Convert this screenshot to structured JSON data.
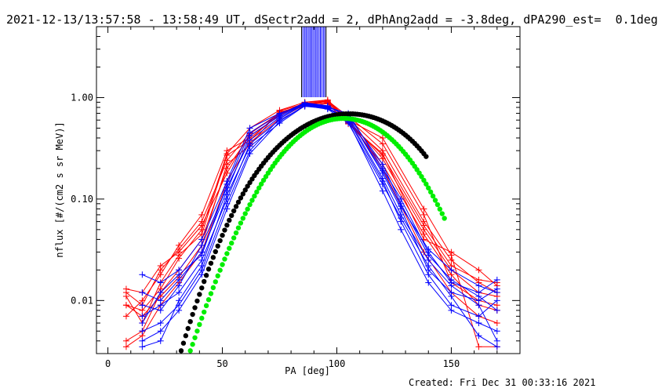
{
  "title": "2021-12-13/13:57:58 - 13:58:49 UT, dSectr2add = 2, dPhAng2add = -3.8deg, dPA290_est=  0.1deg",
  "footer": "Created: Fri Dec 31 00:33:16 2021",
  "chart_data": {
    "type": "line",
    "xlabel": "PA [deg]",
    "ylabel": "nflux [#/(cm2 s sr MeV)]",
    "xlim": [
      -5,
      180
    ],
    "ylim": [
      0.003,
      5
    ],
    "yscale": "log",
    "x_ticks": [
      {
        "value": 0,
        "label": "0"
      },
      {
        "value": 50,
        "label": "50"
      },
      {
        "value": 100,
        "label": "100"
      },
      {
        "value": 150,
        "label": "150"
      }
    ],
    "y_ticks": [
      {
        "value": 0.01,
        "label": "0.01"
      },
      {
        "value": 0.1,
        "label": "0.10"
      },
      {
        "value": 1,
        "label": "1.00"
      }
    ],
    "colors": {
      "red": "#ff0000",
      "blue": "#0000ff",
      "green": "#00ee00",
      "black": "#000000"
    },
    "vertical_lines": {
      "color_outer": "#000000",
      "color_inner": "#0000ff",
      "x_values": [
        84.6,
        85.2,
        85.9,
        86.5,
        87.1,
        87.8,
        88.4,
        89.0,
        89.6,
        90.3,
        90.9,
        91.5,
        92.2,
        92.8,
        93.4,
        94.1,
        94.7,
        95.3
      ]
    },
    "series": [
      {
        "color": "#ff0000",
        "x": [
          8,
          15,
          23,
          31,
          41,
          52,
          62,
          75,
          86,
          96,
          105,
          120,
          138,
          150,
          162,
          170
        ],
        "y": [
          0.009,
          0.008,
          0.013,
          0.026,
          0.05,
          0.28,
          0.5,
          0.75,
          0.9,
          0.95,
          0.6,
          0.25,
          0.05,
          0.02,
          0.012,
          0.011
        ]
      },
      {
        "color": "#ff0000",
        "x": [
          8,
          15,
          23,
          31,
          41,
          52,
          62,
          75,
          86,
          96,
          105,
          120,
          138,
          150,
          162,
          170
        ],
        "y": [
          0.012,
          0.009,
          0.02,
          0.032,
          0.06,
          0.24,
          0.45,
          0.7,
          0.88,
          0.92,
          0.62,
          0.3,
          0.06,
          0.025,
          0.015,
          0.012
        ]
      },
      {
        "color": "#ff0000",
        "x": [
          8,
          15,
          23,
          31,
          41,
          52,
          62,
          75,
          86,
          96,
          105,
          120,
          138,
          150,
          162,
          170
        ],
        "y": [
          0.007,
          0.01,
          0.018,
          0.035,
          0.07,
          0.3,
          0.4,
          0.68,
          0.86,
          0.9,
          0.58,
          0.22,
          0.045,
          0.018,
          0.009,
          0.008
        ]
      },
      {
        "color": "#ff0000",
        "x": [
          8,
          15,
          23,
          31,
          41,
          52,
          62,
          75,
          86,
          96,
          105,
          120,
          138,
          150,
          162,
          170
        ],
        "y": [
          0.011,
          0.006,
          0.015,
          0.028,
          0.045,
          0.27,
          0.38,
          0.72,
          0.84,
          0.87,
          0.55,
          0.28,
          0.04,
          0.03,
          0.02,
          0.014
        ]
      },
      {
        "color": "#ff0000",
        "x": [
          8,
          15,
          23,
          31,
          41,
          52,
          62,
          75,
          86,
          96,
          105,
          120,
          138,
          150,
          162,
          170
        ],
        "y": [
          0.004,
          0.005,
          0.012,
          0.02,
          0.04,
          0.2,
          0.42,
          0.66,
          0.9,
          0.93,
          0.65,
          0.35,
          0.07,
          0.015,
          0.01,
          0.009
        ]
      },
      {
        "color": "#ff0000",
        "x": [
          8,
          15,
          23,
          31,
          41,
          52,
          62,
          75,
          86,
          96,
          105,
          120,
          138,
          150,
          162,
          170
        ],
        "y": [
          0.009,
          0.007,
          0.011,
          0.017,
          0.035,
          0.22,
          0.34,
          0.74,
          0.87,
          0.9,
          0.6,
          0.4,
          0.08,
          0.028,
          0.0035,
          0.0035
        ]
      },
      {
        "color": "#ff0000",
        "x": [
          8,
          15,
          23,
          31,
          41,
          52,
          62,
          75,
          86,
          96,
          105,
          120,
          138,
          150,
          162,
          170
        ],
        "y": [
          0.013,
          0.012,
          0.022,
          0.03,
          0.055,
          0.18,
          0.44,
          0.7,
          0.82,
          0.88,
          0.63,
          0.2,
          0.03,
          0.012,
          0.007,
          0.006
        ]
      },
      {
        "color": "#ff0000",
        "x": [
          8,
          15,
          23,
          31,
          41,
          52,
          62,
          75,
          86,
          96,
          105,
          120,
          138,
          150,
          162,
          170
        ],
        "y": [
          0.0035,
          0.0045,
          0.009,
          0.015,
          0.03,
          0.15,
          0.36,
          0.62,
          0.85,
          0.9,
          0.57,
          0.27,
          0.055,
          0.022,
          0.016,
          0.015
        ]
      },
      {
        "color": "#0000ff",
        "x": [
          15,
          23,
          31,
          41,
          52,
          62,
          75,
          86,
          96,
          105,
          120,
          128,
          140,
          150,
          162,
          170
        ],
        "y": [
          0.018,
          0.015,
          0.02,
          0.04,
          0.15,
          0.5,
          0.7,
          0.85,
          0.8,
          0.7,
          0.2,
          0.1,
          0.03,
          0.015,
          0.012,
          0.016
        ]
      },
      {
        "color": "#0000ff",
        "x": [
          15,
          23,
          31,
          41,
          52,
          62,
          75,
          86,
          96,
          105,
          120,
          128,
          140,
          150,
          162,
          170
        ],
        "y": [
          0.012,
          0.01,
          0.016,
          0.03,
          0.12,
          0.42,
          0.66,
          0.88,
          0.82,
          0.65,
          0.18,
          0.08,
          0.02,
          0.012,
          0.01,
          0.013
        ]
      },
      {
        "color": "#0000ff",
        "x": [
          15,
          23,
          31,
          41,
          52,
          62,
          75,
          86,
          96,
          105,
          120,
          128,
          140,
          150,
          162,
          170
        ],
        "y": [
          0.007,
          0.009,
          0.012,
          0.025,
          0.1,
          0.35,
          0.6,
          0.82,
          0.78,
          0.6,
          0.15,
          0.06,
          0.018,
          0.009,
          0.007,
          0.01
        ]
      },
      {
        "color": "#0000ff",
        "x": [
          15,
          23,
          31,
          41,
          52,
          62,
          75,
          86,
          96,
          105,
          120,
          128,
          140,
          150,
          162,
          170
        ],
        "y": [
          0.005,
          0.006,
          0.009,
          0.02,
          0.09,
          0.3,
          0.62,
          0.86,
          0.8,
          0.58,
          0.12,
          0.05,
          0.015,
          0.008,
          0.006,
          0.005
        ]
      },
      {
        "color": "#0000ff",
        "x": [
          15,
          23,
          31,
          41,
          52,
          62,
          75,
          86,
          96,
          105,
          120,
          128,
          140,
          150,
          162,
          170
        ],
        "y": [
          0.004,
          0.005,
          0.008,
          0.018,
          0.08,
          0.28,
          0.58,
          0.84,
          0.79,
          0.62,
          0.16,
          0.07,
          0.025,
          0.014,
          0.009,
          0.004
        ]
      },
      {
        "color": "#0000ff",
        "x": [
          15,
          23,
          31,
          41,
          52,
          62,
          75,
          86,
          96,
          105,
          120,
          128,
          140,
          150,
          162,
          170
        ],
        "y": [
          0.009,
          0.008,
          0.014,
          0.035,
          0.13,
          0.38,
          0.64,
          0.87,
          0.81,
          0.66,
          0.22,
          0.09,
          0.028,
          0.016,
          0.011,
          0.008
        ]
      },
      {
        "color": "#0000ff",
        "x": [
          15,
          23,
          31,
          41,
          52,
          62,
          75,
          86,
          96,
          105,
          120,
          128,
          140,
          150,
          162,
          170
        ],
        "y": [
          0.0035,
          0.004,
          0.01,
          0.022,
          0.11,
          0.33,
          0.56,
          0.83,
          0.77,
          0.56,
          0.14,
          0.065,
          0.022,
          0.011,
          0.0045,
          0.0035
        ]
      },
      {
        "color": "#0000ff",
        "x": [
          15,
          23,
          31,
          41,
          52,
          62,
          75,
          86,
          96,
          105,
          120,
          128,
          140,
          150,
          162,
          170
        ],
        "y": [
          0.006,
          0.012,
          0.018,
          0.028,
          0.14,
          0.45,
          0.68,
          0.89,
          0.83,
          0.64,
          0.19,
          0.085,
          0.032,
          0.02,
          0.014,
          0.012
        ]
      },
      {
        "color": "#000000",
        "style": "dots",
        "x": [
          32,
          33,
          34,
          35,
          36,
          37,
          38,
          39,
          40,
          41,
          42,
          43,
          44,
          45,
          46,
          47,
          48,
          49,
          50,
          51,
          52,
          53,
          54,
          55,
          56,
          57,
          58,
          59,
          60,
          61,
          62,
          63,
          64,
          65,
          66,
          67,
          68,
          69,
          70,
          71,
          72,
          73,
          74,
          75,
          76,
          77,
          78,
          79,
          80,
          81,
          82,
          83,
          84,
          85,
          86,
          87,
          88,
          89,
          90,
          91,
          92,
          93,
          94,
          95,
          96,
          97,
          98,
          99,
          100,
          101,
          102,
          103,
          104,
          105,
          106,
          107,
          108,
          109,
          110,
          111,
          112,
          113,
          114,
          115,
          116,
          117,
          118,
          119,
          120,
          121,
          122,
          123,
          124,
          125,
          126,
          127,
          128,
          129,
          130,
          131,
          132,
          133,
          134,
          135,
          136,
          137,
          138,
          139
        ],
        "y": [
          0.0032,
          0.0038,
          0.0045,
          0.0053,
          0.0062,
          0.0073,
          0.0085,
          0.0099,
          0.0115,
          0.0133,
          0.0154,
          0.0177,
          0.0204,
          0.0233,
          0.0266,
          0.0303,
          0.0344,
          0.0389,
          0.0439,
          0.0494,
          0.0553,
          0.0618,
          0.0688,
          0.0764,
          0.0845,
          0.0932,
          0.1025,
          0.1123,
          0.1228,
          0.1338,
          0.1454,
          0.1576,
          0.1703,
          0.1835,
          0.1972,
          0.2114,
          0.2261,
          0.2412,
          0.2567,
          0.2726,
          0.2888,
          0.3053,
          0.322,
          0.3389,
          0.356,
          0.3732,
          0.3904,
          0.4076,
          0.4248,
          0.4418,
          0.4587,
          0.4754,
          0.4918,
          0.5079,
          0.5236,
          0.5389,
          0.5537,
          0.568,
          0.5817,
          0.5947,
          0.6071,
          0.6188,
          0.6297,
          0.6398,
          0.6491,
          0.6576,
          0.6652,
          0.6719,
          0.6777,
          0.6825,
          0.6864,
          0.6893,
          0.6912,
          0.6921,
          0.692,
          0.6909,
          0.6887,
          0.6856,
          0.6815,
          0.6764,
          0.6703,
          0.6633,
          0.6553,
          0.6464,
          0.6366,
          0.626,
          0.6145,
          0.6022,
          0.5892,
          0.5754,
          0.561,
          0.5459,
          0.5302,
          0.514,
          0.4973,
          0.4802,
          0.4627,
          0.445,
          0.4269,
          0.4087,
          0.3904,
          0.3719,
          0.3534,
          0.3349,
          0.3165,
          0.2983,
          0.2802,
          0.2624
        ]
      },
      {
        "color": "#00ee00",
        "style": "dots",
        "x": [
          36,
          37,
          38,
          39,
          40,
          41,
          42,
          43,
          44,
          45,
          46,
          47,
          48,
          49,
          50,
          51,
          52,
          53,
          54,
          55,
          56,
          57,
          58,
          59,
          60,
          61,
          62,
          63,
          64,
          65,
          66,
          67,
          68,
          69,
          70,
          71,
          72,
          73,
          74,
          75,
          76,
          77,
          78,
          79,
          80,
          81,
          82,
          83,
          84,
          85,
          86,
          87,
          88,
          89,
          90,
          91,
          92,
          93,
          94,
          95,
          96,
          97,
          98,
          99,
          100,
          101,
          102,
          103,
          104,
          105,
          106,
          107,
          108,
          109,
          110,
          111,
          112,
          113,
          114,
          115,
          116,
          117,
          118,
          119,
          120,
          121,
          122,
          123,
          124,
          125,
          126,
          127,
          128,
          129,
          130,
          131,
          132,
          133,
          134,
          135,
          136,
          137,
          138,
          139,
          140,
          141,
          142,
          143,
          144,
          145,
          146,
          147
        ],
        "y": [
          0.0032,
          0.0037,
          0.0043,
          0.005,
          0.0058,
          0.0067,
          0.0077,
          0.0089,
          0.0102,
          0.0117,
          0.0134,
          0.0153,
          0.0175,
          0.0199,
          0.0226,
          0.0256,
          0.029,
          0.0327,
          0.0368,
          0.0414,
          0.0464,
          0.052,
          0.058,
          0.0646,
          0.0718,
          0.0796,
          0.0881,
          0.0972,
          0.107,
          0.1175,
          0.1287,
          0.1406,
          0.1532,
          0.1665,
          0.1805,
          0.1951,
          0.2104,
          0.2262,
          0.2426,
          0.2594,
          0.2767,
          0.2944,
          0.3123,
          0.3305,
          0.3489,
          0.3673,
          0.3857,
          0.404,
          0.4221,
          0.4399,
          0.4573,
          0.4742,
          0.4906,
          0.5063,
          0.5213,
          0.5355,
          0.5488,
          0.5612,
          0.5726,
          0.5829,
          0.5922,
          0.6003,
          0.6072,
          0.6129,
          0.6173,
          0.6205,
          0.6224,
          0.6231,
          0.6224,
          0.6205,
          0.6173,
          0.6129,
          0.6072,
          0.6003,
          0.5922,
          0.5829,
          0.5726,
          0.5612,
          0.5488,
          0.5355,
          0.5213,
          0.5063,
          0.4906,
          0.4742,
          0.4573,
          0.4399,
          0.4221,
          0.404,
          0.3857,
          0.3673,
          0.3489,
          0.3305,
          0.3123,
          0.2944,
          0.2767,
          0.2594,
          0.2426,
          0.2262,
          0.2104,
          0.1951,
          0.1805,
          0.1665,
          0.1532,
          0.1406,
          0.1287,
          0.1175,
          0.107,
          0.0972,
          0.0881,
          0.0796,
          0.0718,
          0.0646
        ]
      }
    ]
  }
}
